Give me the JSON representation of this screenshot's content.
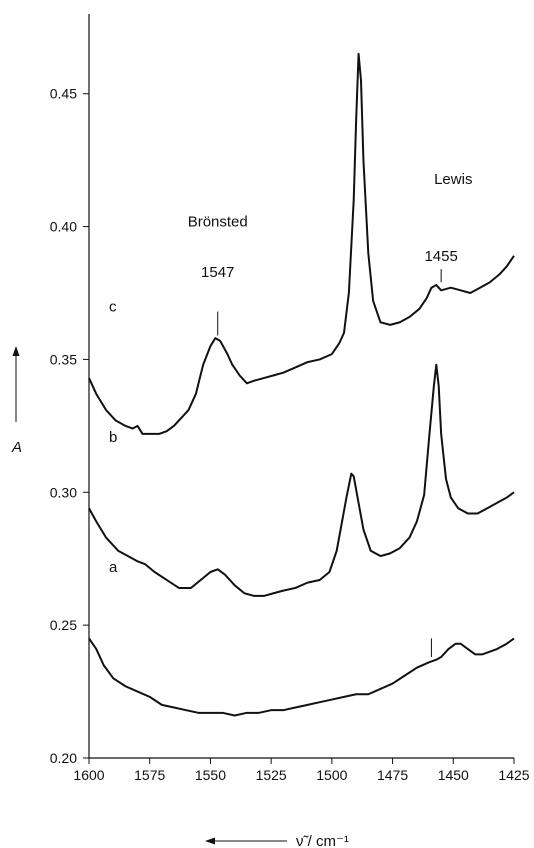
{
  "chart_data": {
    "type": "line",
    "xlabel": "ν̃ / cm⁻¹",
    "ylabel": "A",
    "x_reversed": true,
    "xlim": [
      1600,
      1425
    ],
    "ylim": [
      0.2,
      0.48
    ],
    "x_ticks": [
      1600,
      1575,
      1550,
      1525,
      1500,
      1475,
      1450,
      1425
    ],
    "y_ticks": [
      0.2,
      0.25,
      0.3,
      0.35,
      0.4,
      0.45
    ],
    "x_tick_labels": [
      "1600",
      "1575",
      "1550",
      "1525",
      "1500",
      "1475",
      "1450",
      "1425"
    ],
    "y_tick_labels": [
      "0.20",
      "0.25",
      "0.30",
      "0.35",
      "0.40",
      "0.45"
    ],
    "grid": false,
    "legend": "none",
    "series": [
      {
        "name": "a",
        "color": "#111111",
        "points": [
          [
            1600,
            0.245
          ],
          [
            1597,
            0.241
          ],
          [
            1594,
            0.235
          ],
          [
            1590,
            0.23
          ],
          [
            1585,
            0.227
          ],
          [
            1580,
            0.225
          ],
          [
            1575,
            0.223
          ],
          [
            1570,
            0.22
          ],
          [
            1565,
            0.219
          ],
          [
            1560,
            0.218
          ],
          [
            1555,
            0.217
          ],
          [
            1550,
            0.217
          ],
          [
            1545,
            0.217
          ],
          [
            1540,
            0.216
          ],
          [
            1535,
            0.217
          ],
          [
            1530,
            0.217
          ],
          [
            1525,
            0.218
          ],
          [
            1520,
            0.218
          ],
          [
            1515,
            0.219
          ],
          [
            1510,
            0.22
          ],
          [
            1505,
            0.221
          ],
          [
            1500,
            0.222
          ],
          [
            1495,
            0.223
          ],
          [
            1490,
            0.224
          ],
          [
            1485,
            0.224
          ],
          [
            1480,
            0.226
          ],
          [
            1475,
            0.228
          ],
          [
            1470,
            0.231
          ],
          [
            1465,
            0.234
          ],
          [
            1460,
            0.236
          ],
          [
            1457,
            0.237
          ],
          [
            1455,
            0.238
          ],
          [
            1452,
            0.241
          ],
          [
            1449,
            0.243
          ],
          [
            1447,
            0.243
          ],
          [
            1444,
            0.241
          ],
          [
            1441,
            0.239
          ],
          [
            1438,
            0.239
          ],
          [
            1435,
            0.24
          ],
          [
            1432,
            0.241
          ],
          [
            1428,
            0.243
          ],
          [
            1425,
            0.245
          ]
        ]
      },
      {
        "name": "b",
        "color": "#111111",
        "points": [
          [
            1600,
            0.294
          ],
          [
            1597,
            0.289
          ],
          [
            1593,
            0.283
          ],
          [
            1588,
            0.278
          ],
          [
            1584,
            0.276
          ],
          [
            1580,
            0.274
          ],
          [
            1577,
            0.273
          ],
          [
            1573,
            0.27
          ],
          [
            1568,
            0.267
          ],
          [
            1563,
            0.264
          ],
          [
            1558,
            0.264
          ],
          [
            1554,
            0.267
          ],
          [
            1550,
            0.27
          ],
          [
            1547,
            0.271
          ],
          [
            1544,
            0.269
          ],
          [
            1540,
            0.265
          ],
          [
            1536,
            0.262
          ],
          [
            1532,
            0.261
          ],
          [
            1528,
            0.261
          ],
          [
            1524,
            0.262
          ],
          [
            1520,
            0.263
          ],
          [
            1515,
            0.264
          ],
          [
            1510,
            0.266
          ],
          [
            1505,
            0.267
          ],
          [
            1501,
            0.27
          ],
          [
            1498,
            0.278
          ],
          [
            1496,
            0.288
          ],
          [
            1494,
            0.298
          ],
          [
            1492,
            0.307
          ],
          [
            1491,
            0.306
          ],
          [
            1489,
            0.296
          ],
          [
            1487,
            0.286
          ],
          [
            1484,
            0.278
          ],
          [
            1480,
            0.276
          ],
          [
            1476,
            0.277
          ],
          [
            1472,
            0.279
          ],
          [
            1468,
            0.283
          ],
          [
            1465,
            0.289
          ],
          [
            1462,
            0.299
          ],
          [
            1460,
            0.32
          ],
          [
            1458,
            0.34
          ],
          [
            1457,
            0.348
          ],
          [
            1456,
            0.34
          ],
          [
            1455,
            0.322
          ],
          [
            1453,
            0.305
          ],
          [
            1451,
            0.298
          ],
          [
            1448,
            0.294
          ],
          [
            1444,
            0.292
          ],
          [
            1440,
            0.292
          ],
          [
            1436,
            0.294
          ],
          [
            1432,
            0.296
          ],
          [
            1428,
            0.298
          ],
          [
            1425,
            0.3
          ]
        ]
      },
      {
        "name": "c",
        "color": "#111111",
        "points": [
          [
            1600,
            0.343
          ],
          [
            1597,
            0.337
          ],
          [
            1593,
            0.331
          ],
          [
            1589,
            0.327
          ],
          [
            1585,
            0.325
          ],
          [
            1582,
            0.324
          ],
          [
            1580,
            0.325
          ],
          [
            1578,
            0.322
          ],
          [
            1575,
            0.322
          ],
          [
            1571,
            0.322
          ],
          [
            1568,
            0.323
          ],
          [
            1565,
            0.325
          ],
          [
            1562,
            0.328
          ],
          [
            1559,
            0.331
          ],
          [
            1556,
            0.337
          ],
          [
            1553,
            0.348
          ],
          [
            1550,
            0.355
          ],
          [
            1548,
            0.358
          ],
          [
            1546,
            0.357
          ],
          [
            1543,
            0.352
          ],
          [
            1541,
            0.348
          ],
          [
            1538,
            0.344
          ],
          [
            1535,
            0.341
          ],
          [
            1532,
            0.342
          ],
          [
            1528,
            0.343
          ],
          [
            1524,
            0.344
          ],
          [
            1520,
            0.345
          ],
          [
            1515,
            0.347
          ],
          [
            1510,
            0.349
          ],
          [
            1505,
            0.35
          ],
          [
            1500,
            0.352
          ],
          [
            1497,
            0.356
          ],
          [
            1495,
            0.36
          ],
          [
            1493,
            0.375
          ],
          [
            1491,
            0.41
          ],
          [
            1490,
            0.44
          ],
          [
            1489,
            0.465
          ],
          [
            1488,
            0.455
          ],
          [
            1487,
            0.425
          ],
          [
            1485,
            0.39
          ],
          [
            1483,
            0.372
          ],
          [
            1480,
            0.364
          ],
          [
            1476,
            0.363
          ],
          [
            1472,
            0.364
          ],
          [
            1468,
            0.366
          ],
          [
            1464,
            0.369
          ],
          [
            1461,
            0.373
          ],
          [
            1459,
            0.377
          ],
          [
            1457,
            0.378
          ],
          [
            1455,
            0.376
          ],
          [
            1451,
            0.377
          ],
          [
            1447,
            0.376
          ],
          [
            1443,
            0.375
          ],
          [
            1439,
            0.377
          ],
          [
            1435,
            0.379
          ],
          [
            1431,
            0.382
          ],
          [
            1428,
            0.385
          ],
          [
            1425,
            0.389
          ]
        ]
      }
    ],
    "annotations": [
      {
        "text": "Brönsted",
        "x": 1547,
        "y": 0.4
      },
      {
        "text": "Lewis",
        "x": 1450,
        "y": 0.416
      },
      {
        "text": "1547",
        "x": 1547,
        "y": 0.381
      },
      {
        "text": "1455",
        "x": 1455,
        "y": 0.387
      }
    ],
    "markers": [
      {
        "x": 1547,
        "y_from": 0.368,
        "y_to": 0.359
      },
      {
        "x": 1455,
        "y_from": 0.384,
        "y_to": 0.379
      },
      {
        "x": 1459,
        "y_from": 0.245,
        "y_to": 0.238
      }
    ]
  }
}
